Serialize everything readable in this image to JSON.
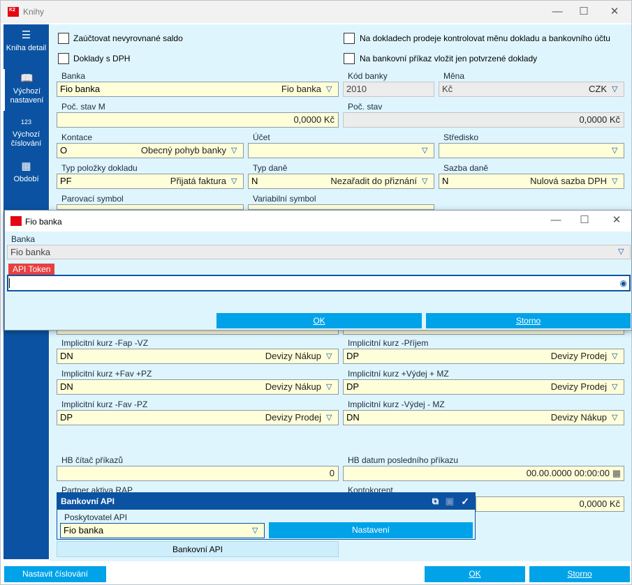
{
  "window": {
    "title": "Knihy"
  },
  "sidebar": {
    "items": [
      {
        "label": "Kniha detail",
        "icon": "menu-icon"
      },
      {
        "label": "Výchozí nastavení",
        "icon": "book-icon"
      },
      {
        "label": "Výchozí číslování",
        "icon": "numbers-icon",
        "glyph": "123"
      },
      {
        "label": "Období",
        "icon": "calendar-icon"
      }
    ]
  },
  "checkboxes": {
    "zauctovat": "Zaúčtovat nevyrovnané saldo",
    "doklady_dph": "Doklady s DPH",
    "kontrolovat_menu": "Na dokladech prodeje kontrolovat měnu dokladu a bankovního účtu",
    "potvrzene": "Na bankovní příkaz vložit jen potvrzené doklady"
  },
  "fields": {
    "banka": {
      "label": "Banka",
      "value": "Fio banka",
      "right": "Fio banka"
    },
    "kod_banky": {
      "label": "Kód banky",
      "value": "2010"
    },
    "mena": {
      "label": "Měna",
      "value": "Kč",
      "right": "CZK"
    },
    "poc_stav_m": {
      "label": "Poč. stav M",
      "value": "0,0000 Kč"
    },
    "poc_stav": {
      "label": "Poč. stav",
      "value": "0,0000 Kč"
    },
    "kontace": {
      "label": "Kontace",
      "value": "O",
      "right": "Obecný pohyb banky"
    },
    "ucet": {
      "label": "Účet",
      "value": ""
    },
    "stredisko": {
      "label": "Středisko",
      "value": ""
    },
    "typ_polozky": {
      "label": "Typ položky dokladu",
      "value": "PF",
      "right": "Přijatá faktura"
    },
    "typ_dane": {
      "label": "Typ daně",
      "value": "N",
      "right": "Nezařadit do přiznání"
    },
    "sazba_dane": {
      "label": "Sazba daně",
      "value": "N",
      "right": "Nulová sazba DPH"
    },
    "parovaci": {
      "label": "Parovací symbol"
    },
    "variabilni": {
      "label": "Variabilní symbol"
    },
    "kurz_fap_vz": {
      "label": "Implicitní kurz -Fap -VZ",
      "value": "DN",
      "right": "Devizy Nákup"
    },
    "kurz_prijem": {
      "label": "Implicitní kurz -Příjem",
      "value": "DP",
      "right": "Devizy Prodej"
    },
    "kurz_fav_pz": {
      "label": "Implicitní kurz +Fav +PZ",
      "value": "DN",
      "right": "Devizy Nákup"
    },
    "kurz_vydej_mz": {
      "label": "Implicitní kurz +Výdej + MZ",
      "value": "DP",
      "right": "Devizy Prodej"
    },
    "kurz_fav_pz_neg": {
      "label": "Implicitní kurz -Fav -PZ",
      "value": "DP",
      "right": "Devizy Prodej"
    },
    "kurz_vydej_mz_neg": {
      "label": "Implicitní kurz -Výdej - MZ",
      "value": "DN",
      "right": "Devizy Nákup"
    },
    "hb_citac": {
      "label": "HB čítač příkazů",
      "value": "0"
    },
    "hb_datum": {
      "label": "HB datum posledního příkazu",
      "value": "00.00.0000 00:00:00"
    },
    "partner": {
      "label": "Partner aktiva RAP"
    },
    "kontokorent": {
      "label": "Kontokorent",
      "value": "0,0000 Kč"
    }
  },
  "dialog": {
    "title": "Fio banka",
    "banka_label": "Banka",
    "banka_value": "Fio banka",
    "token_label": "API Token",
    "token_value": "",
    "ok": "OK",
    "storno": "Storno"
  },
  "bankovni_api": {
    "title": "Bankovní API",
    "provider_label": "Poskytovatel API",
    "provider_value": "Fio banka",
    "settings_button": "Nastavení",
    "footer_button": "Bankovní API"
  },
  "bottom": {
    "nastavit": "Nastavit číslování",
    "ok": "OK",
    "storno": "Storno"
  }
}
